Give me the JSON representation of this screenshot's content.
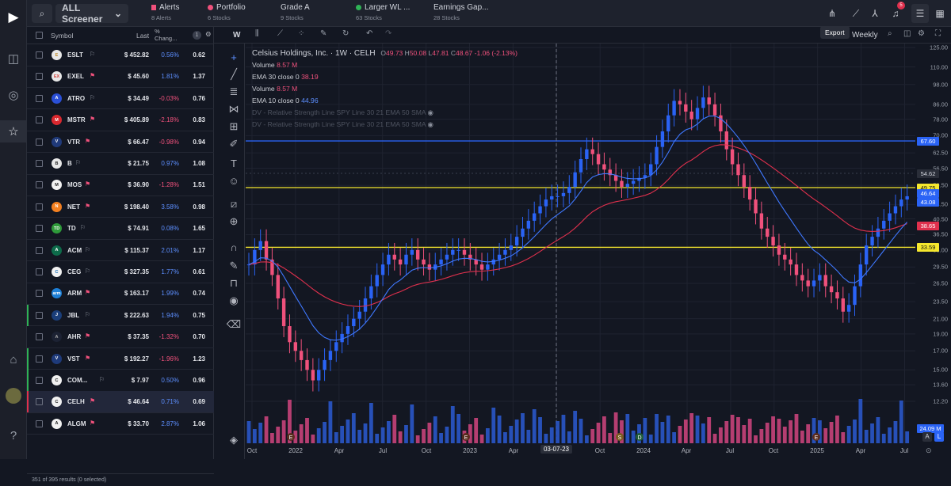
{
  "sidebar": {
    "icons": [
      "brand-logo-icon",
      "layout-icon",
      "target-icon",
      "star-icon",
      "cap-icon",
      "help-icon"
    ]
  },
  "topbar": {
    "screener_label": "ALL Screener",
    "watchlists": [
      {
        "name": "Alerts",
        "sub": "8 Alerts",
        "color": "#f0517c"
      },
      {
        "name": "Portfolio",
        "sub": "6 Stocks",
        "color": "#f0517c"
      },
      {
        "name": "Grade A",
        "sub": "9 Stocks",
        "color": ""
      },
      {
        "name": "Larger WL ...",
        "sub": "63 Stocks",
        "color": "#2fb356"
      },
      {
        "name": "Earnings Gap...",
        "sub": "28 Stocks",
        "color": ""
      }
    ],
    "badge": "5"
  },
  "watchlist": {
    "headers": {
      "symbol": "Symbol",
      "last": "Last",
      "change": "% Chang...",
      "badge": "1"
    },
    "rows": [
      {
        "symbol": "ESLT",
        "flag": false,
        "last": "$ 452.82",
        "change": "0.56%",
        "c6": "0.62",
        "logo": "#e8e8e8",
        "logo_fg": "#c08c2a",
        "lt": "E",
        "dir": "pos"
      },
      {
        "symbol": "EXEL",
        "flag": true,
        "last": "$ 45.60",
        "change": "1.81%",
        "c6": "1.37",
        "logo": "#e8e8e8",
        "logo_fg": "#d6443f",
        "lt": "EX",
        "dir": "pos"
      },
      {
        "symbol": "ATRO",
        "flag": false,
        "last": "$ 34.49",
        "change": "-0.03%",
        "c6": "0.76",
        "logo": "#2a4fd6",
        "logo_fg": "#fff",
        "lt": "A",
        "dir": "neg"
      },
      {
        "symbol": "MSTR",
        "flag": true,
        "last": "$ 405.89",
        "change": "-2.18%",
        "c6": "0.83",
        "logo": "#d9282f",
        "logo_fg": "#fff",
        "lt": "M",
        "dir": "neg"
      },
      {
        "symbol": "VTR",
        "flag": true,
        "last": "$ 66.47",
        "change": "-0.98%",
        "c6": "0.94",
        "logo": "#203a7a",
        "logo_fg": "#fff",
        "lt": "V",
        "dir": "neg"
      },
      {
        "symbol": "B",
        "flag": false,
        "last": "$ 21.75",
        "change": "0.97%",
        "c6": "1.08",
        "logo": "#e8e8e8",
        "logo_fg": "#222",
        "lt": "B",
        "dir": "pos"
      },
      {
        "symbol": "MOS",
        "flag": true,
        "last": "$ 36.90",
        "change": "-1.28%",
        "c6": "1.51",
        "logo": "#f2f2f2",
        "logo_fg": "#222",
        "lt": "M",
        "dir": "neg"
      },
      {
        "symbol": "NET",
        "flag": true,
        "last": "$ 198.40",
        "change": "3.58%",
        "c6": "0.98",
        "logo": "#f38020",
        "logo_fg": "#fff",
        "lt": "N",
        "dir": "pos"
      },
      {
        "symbol": "TD",
        "flag": false,
        "last": "$ 74.91",
        "change": "0.08%",
        "c6": "1.65",
        "logo": "#2e9a3a",
        "logo_fg": "#fff",
        "lt": "TD",
        "dir": "pos"
      },
      {
        "symbol": "ACM",
        "flag": false,
        "last": "$ 115.37",
        "change": "2.01%",
        "c6": "1.17",
        "logo": "#0d6b4a",
        "logo_fg": "#fff",
        "lt": "A",
        "dir": "pos"
      },
      {
        "symbol": "CEG",
        "flag": false,
        "last": "$ 327.35",
        "change": "1.77%",
        "c6": "0.61",
        "logo": "#f1f1f1",
        "logo_fg": "#1a6fb8",
        "lt": "C",
        "dir": "pos"
      },
      {
        "symbol": "ARM",
        "flag": true,
        "last": "$ 163.17",
        "change": "1.99%",
        "c6": "0.74",
        "logo": "#1d7fd6",
        "logo_fg": "#fff",
        "lt": "arm",
        "dir": "pos"
      },
      {
        "symbol": "JBL",
        "flag": false,
        "last": "$ 222.63",
        "change": "1.94%",
        "c6": "0.75",
        "logo": "#1a3e7a",
        "logo_fg": "#fff",
        "lt": "J",
        "dir": "pos"
      },
      {
        "symbol": "AHR",
        "flag": true,
        "last": "$ 37.35",
        "change": "-1.32%",
        "c6": "0.70",
        "logo": "#1c2233",
        "logo_fg": "#aaa",
        "lt": "A",
        "dir": "neg"
      },
      {
        "symbol": "VST",
        "flag": true,
        "last": "$ 192.27",
        "change": "-1.96%",
        "c6": "1.23",
        "logo": "#1e3a7a",
        "logo_fg": "#fff",
        "lt": "V",
        "dir": "neg"
      },
      {
        "symbol": "COM...",
        "flag": false,
        "last": "$ 7.97",
        "change": "0.50%",
        "c6": "0.96",
        "logo": "#f1f1f1",
        "logo_fg": "#222",
        "lt": "C",
        "dir": "pos"
      },
      {
        "symbol": "CELH",
        "flag": true,
        "last": "$ 46.64",
        "change": "0.71%",
        "c6": "0.69",
        "logo": "#f1f1f1",
        "logo_fg": "#222",
        "lt": "C",
        "dir": "pos",
        "selected": true
      },
      {
        "symbol": "ALGM",
        "flag": true,
        "last": "$ 33.70",
        "change": "2.87%",
        "c6": "1.06",
        "logo": "#f1f1f1",
        "logo_fg": "#222",
        "lt": "A",
        "dir": "pos"
      }
    ],
    "status": "351 of 395 results (0 selected)"
  },
  "chart_toolbar": {
    "interval": "W",
    "export_label": "Export",
    "range_label": "Weekly"
  },
  "legend": {
    "title": "Celsius Holdings, Inc. · 1W · CELH",
    "ohlc": [
      {
        "k": "O",
        "v": "49.73"
      },
      {
        "k": "H",
        "v": "50.08"
      },
      {
        "k": "L",
        "v": "47.81"
      },
      {
        "k": "C",
        "v": "48.67"
      }
    ],
    "change": "-1.06 (-2.13%)",
    "lines": [
      {
        "label": "Volume",
        "value": "8.57 M",
        "color": "#f0517c"
      },
      {
        "label": "EMA 30 close 0",
        "value": "38.19",
        "color": "#f0517c"
      },
      {
        "label": "Volume",
        "value": "8.57 M",
        "color": "#f0517c"
      },
      {
        "label": "EMA 10 close 0",
        "value": "44.96",
        "color": "#5d8fff"
      }
    ],
    "rs_lines": [
      "DV - Relative Strength Line SPY Line 30 21 EMA 50 SMA",
      "DV - Relative Strength Line SPY Line 30 21 EMA 50 SMA"
    ]
  },
  "price_axis": {
    "ticks": [
      "125.00",
      "110.00",
      "98.00",
      "86.00",
      "78.00",
      "70.00",
      "62.50",
      "56.50",
      "50.50",
      "44.50",
      "40.50",
      "36.50",
      "33.00",
      "29.50",
      "26.50",
      "23.50",
      "21.00",
      "19.00",
      "17.00",
      "15.00",
      "13.60",
      "12.20"
    ],
    "labels": [
      {
        "text": "67.60",
        "bg": "#2a63f5",
        "fg": "#fff"
      },
      {
        "text": "54.62",
        "bg": "#2a2e39",
        "fg": "#d1d4dc"
      },
      {
        "text": "49.75",
        "bg": "#f5e72e",
        "fg": "#111"
      },
      {
        "text": "46.64",
        "bg": "#2a63f5",
        "fg": "#fff"
      },
      {
        "text": "43.08",
        "bg": "#2a63f5",
        "fg": "#fff"
      },
      {
        "text": "38.65",
        "bg": "#e0304d",
        "fg": "#fff"
      },
      {
        "text": "33.59",
        "bg": "#f5e72e",
        "fg": "#111"
      },
      {
        "text": "24.09 M",
        "bg": "#2a63f5",
        "fg": "#fff"
      }
    ],
    "bottom_buttons": [
      "A",
      "L"
    ]
  },
  "time_axis": {
    "labels": [
      "Oct",
      "2022",
      "Apr",
      "Jul",
      "Oct",
      "2023",
      "Apr",
      "03-07-23",
      "Oct",
      "2024",
      "Apr",
      "Jul",
      "Oct",
      "2025",
      "Apr",
      "Jul"
    ],
    "crosshair": "03-07-23"
  },
  "chart_data": {
    "type": "candlestick",
    "ticker": "CELH",
    "interval": "Weekly",
    "scale": "log",
    "ylim": [
      12.2,
      125
    ],
    "horizontal_lines": [
      67.6,
      49.75,
      33.59
    ],
    "close_series": [
      30,
      33,
      35,
      31,
      28,
      24,
      20,
      18,
      17,
      16,
      15,
      14,
      15,
      16,
      17,
      18,
      19,
      20,
      21,
      22,
      24,
      26,
      28,
      30,
      32,
      31,
      30,
      32,
      33,
      31,
      30,
      29,
      30,
      31,
      32,
      33,
      33,
      32,
      31,
      30,
      29,
      30,
      31,
      32,
      33,
      34,
      36,
      38,
      40,
      42,
      44,
      46,
      47,
      47,
      48,
      50,
      55,
      60,
      64,
      62,
      58,
      56,
      54,
      52,
      50,
      51,
      52,
      53,
      54,
      58,
      65,
      72,
      80,
      88,
      86,
      82,
      78,
      84,
      90,
      86,
      80,
      72,
      64,
      58,
      54,
      50,
      46,
      42,
      38,
      36,
      34,
      32,
      31,
      30,
      28,
      27,
      26,
      27,
      28,
      26,
      25,
      24,
      22,
      23,
      26,
      30,
      34,
      36,
      38,
      40,
      42,
      44,
      46,
      47
    ]
  }
}
